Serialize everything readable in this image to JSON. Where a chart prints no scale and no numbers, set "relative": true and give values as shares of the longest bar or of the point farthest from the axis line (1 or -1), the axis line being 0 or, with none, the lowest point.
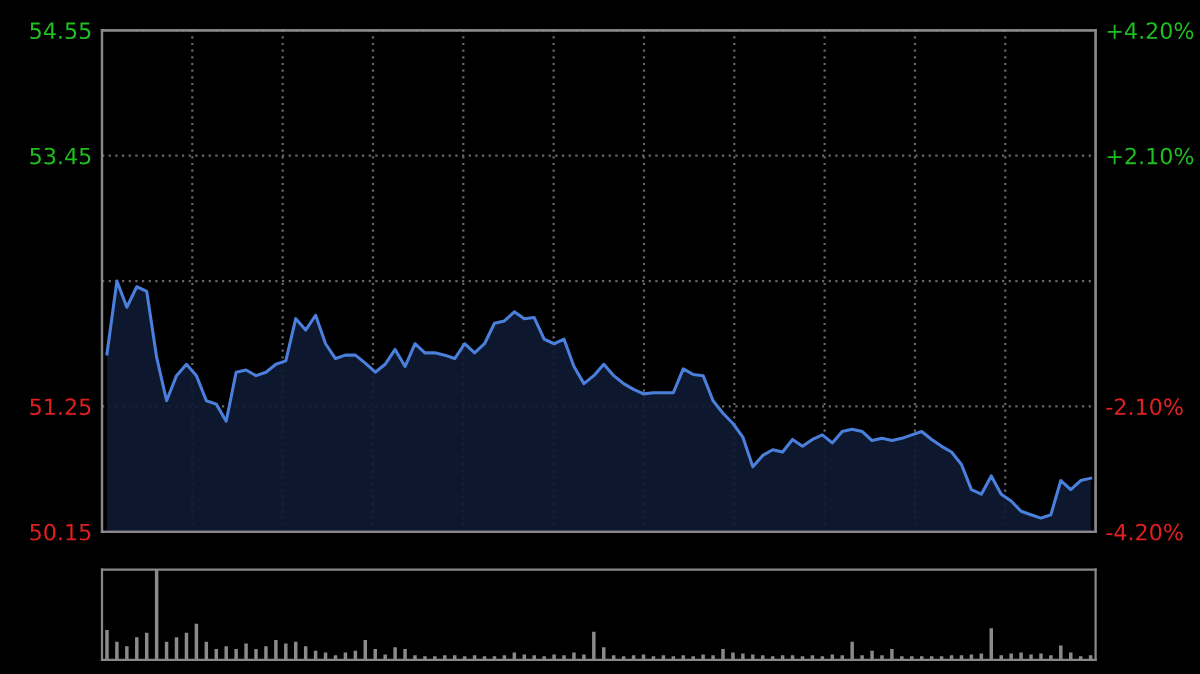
{
  "chart_data": [
    {
      "type": "area",
      "categories": [
        null,
        null,
        null,
        null,
        null,
        null,
        null,
        null,
        null,
        null,
        null,
        null,
        null,
        null,
        null,
        null,
        null,
        null,
        null,
        null,
        null,
        null,
        null,
        null,
        null,
        null,
        null,
        null,
        null,
        null,
        null,
        null,
        null,
        null,
        null,
        null,
        null,
        null,
        null,
        null,
        null,
        null,
        null,
        null,
        null,
        null,
        null,
        null,
        null,
        null,
        null,
        null,
        null,
        null,
        null,
        null,
        null,
        null,
        null,
        null,
        null,
        null,
        null,
        null,
        null,
        null,
        null,
        null,
        null,
        null,
        null,
        null,
        null,
        null,
        null,
        null,
        null,
        null,
        null,
        null,
        null,
        null,
        null,
        null,
        null,
        null,
        null,
        null,
        null,
        null,
        null,
        null,
        null,
        null,
        null,
        null,
        null,
        null,
        null,
        null
      ],
      "series": [
        {
          "color": "#4a80dc",
          "values": [
            51.71,
            52.35,
            52.12,
            52.3,
            52.26,
            51.68,
            51.3,
            51.52,
            51.62,
            51.52,
            51.3,
            51.27,
            51.12,
            51.55,
            51.57,
            51.52,
            51.55,
            51.62,
            51.65,
            52.02,
            51.92,
            52.05,
            51.8,
            51.67,
            51.7,
            51.7,
            51.63,
            51.55,
            51.62,
            51.75,
            51.6,
            51.8,
            51.72,
            51.72,
            51.7,
            51.67,
            51.8,
            51.72,
            51.8,
            51.98,
            52.0,
            52.08,
            52.02,
            52.03,
            51.84,
            51.8,
            51.84,
            51.6,
            51.45,
            51.52,
            51.62,
            51.52,
            51.45,
            51.4,
            51.36,
            51.37,
            51.37,
            51.37,
            51.58,
            51.53,
            51.52,
            51.3,
            51.19,
            51.1,
            50.98,
            50.72,
            50.82,
            50.87,
            50.85,
            50.96,
            50.9,
            50.96,
            51.0,
            50.93,
            51.03,
            51.05,
            51.03,
            50.95,
            50.97,
            50.95,
            50.97,
            51.0,
            51.03,
            50.96,
            50.9,
            50.85,
            50.74,
            50.52,
            50.48,
            50.64,
            50.48,
            50.42,
            50.33,
            50.3,
            50.27,
            50.3,
            50.6,
            50.52,
            50.6,
            50.62
          ]
        }
      ],
      "ylim": [
        50.15,
        54.55
      ],
      "yticks": [
        50.15,
        51.25,
        {
          "value": 52.35,
          "label": null
        },
        53.45,
        54.55
      ],
      "y2lim": [
        -4.2,
        4.2
      ],
      "y2ticks": [
        {
          "value": -4.2,
          "label": "-4.20%"
        },
        {
          "value": -2.1,
          "label": "-2.10%"
        },
        {
          "value": 0,
          "label": null
        },
        {
          "value": 2.1,
          "label": "+2.10%"
        },
        {
          "value": 4.2,
          "label": "+4.20%"
        }
      ],
      "grid": true,
      "line_style": "solid"
    },
    {
      "type": "bar",
      "relative": true,
      "categories": [
        null,
        null,
        null,
        null,
        null,
        null,
        null,
        null,
        null,
        null,
        null,
        null,
        null,
        null,
        null,
        null,
        null,
        null,
        null,
        null,
        null,
        null,
        null,
        null,
        null,
        null,
        null,
        null,
        null,
        null,
        null,
        null,
        null,
        null,
        null,
        null,
        null,
        null,
        null,
        null,
        null,
        null,
        null,
        null,
        null,
        null,
        null,
        null,
        null,
        null,
        null,
        null,
        null,
        null,
        null,
        null,
        null,
        null,
        null,
        null,
        null,
        null,
        null,
        null,
        null,
        null,
        null,
        null,
        null,
        null,
        null,
        null,
        null,
        null,
        null,
        null,
        null,
        null,
        null,
        null,
        null,
        null,
        null,
        null,
        null,
        null,
        null,
        null,
        null,
        null,
        null,
        null,
        null,
        null,
        null,
        null,
        null,
        null,
        null,
        null
      ],
      "color": "#8a8a8a",
      "values": [
        0.33,
        0.2,
        0.15,
        0.25,
        0.3,
        1.0,
        0.2,
        0.25,
        0.3,
        0.4,
        0.2,
        0.12,
        0.15,
        0.12,
        0.18,
        0.12,
        0.15,
        0.22,
        0.18,
        0.2,
        0.15,
        0.1,
        0.08,
        0.05,
        0.08,
        0.1,
        0.22,
        0.12,
        0.06,
        0.14,
        0.12,
        0.05,
        0.04,
        0.04,
        0.05,
        0.05,
        0.04,
        0.05,
        0.04,
        0.04,
        0.05,
        0.08,
        0.06,
        0.05,
        0.04,
        0.06,
        0.05,
        0.08,
        0.06,
        0.31,
        0.14,
        0.05,
        0.04,
        0.05,
        0.06,
        0.04,
        0.05,
        0.04,
        0.05,
        0.04,
        0.06,
        0.05,
        0.12,
        0.08,
        0.07,
        0.06,
        0.05,
        0.04,
        0.05,
        0.05,
        0.04,
        0.05,
        0.04,
        0.06,
        0.05,
        0.2,
        0.05,
        0.1,
        0.05,
        0.12,
        0.04,
        0.04,
        0.04,
        0.04,
        0.04,
        0.05,
        0.05,
        0.06,
        0.07,
        0.35,
        0.05,
        0.07,
        0.08,
        0.06,
        0.07,
        0.05,
        0.16,
        0.08,
        0.04,
        0.05
      ]
    }
  ]
}
